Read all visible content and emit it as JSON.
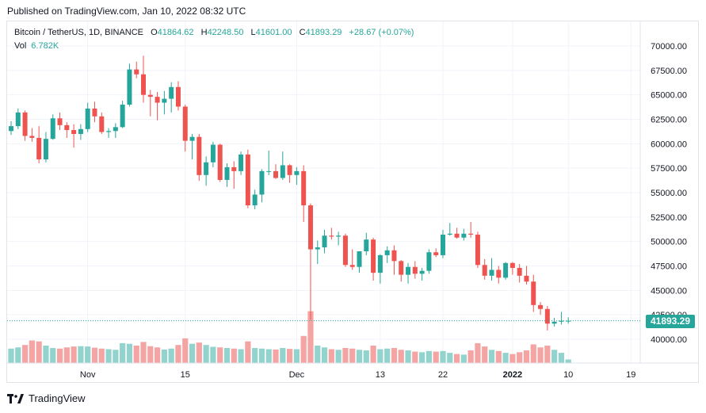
{
  "header": {
    "published": "Published on TradingView.com, Jan 10, 2022 08:32 UTC"
  },
  "legend": {
    "symbol": "Bitcoin / TetherUS, 1D, BINANCE",
    "o_label": "O",
    "o_value": "41864.62",
    "h_label": "H",
    "h_value": "42248.50",
    "l_label": "L",
    "l_value": "41601.00",
    "c_label": "C",
    "c_value": "41893.29",
    "change": "+28.67 (+0.07%)",
    "vol_label": "Vol",
    "vol_value": "6.782K"
  },
  "last_price_tag": "41893.29",
  "brand": {
    "name": "TradingView"
  },
  "colors": {
    "up": "#26a69a",
    "down": "#ef5350",
    "vol_up": "#93d3cd",
    "vol_down": "#f4a4a3",
    "grid": "#f0f3fa"
  },
  "chart_data": {
    "type": "candlestick",
    "title": "Bitcoin / TetherUS, 1D, BINANCE",
    "y_ticks": [
      "70000.00",
      "67500.00",
      "65000.00",
      "62500.00",
      "60000.00",
      "57500.00",
      "55000.00",
      "52500.00",
      "50000.00",
      "47500.00",
      "45000.00",
      "42500.00",
      "40000.00"
    ],
    "x_ticks": [
      {
        "label": "Nov",
        "index": 11
      },
      {
        "label": "15",
        "index": 25
      },
      {
        "label": "Dec",
        "index": 41
      },
      {
        "label": "13",
        "index": 53
      },
      {
        "label": "22",
        "index": 62
      },
      {
        "label": "2022",
        "index": 72
      },
      {
        "label": "10",
        "index": 80
      },
      {
        "label": "19",
        "index": 89
      }
    ],
    "ylim": [
      38000,
      71000
    ],
    "grid": true,
    "last_price": 41893.29,
    "candles": [
      {
        "o": 61300,
        "h": 62300,
        "l": 60900,
        "c": 61800,
        "v": 48
      },
      {
        "o": 61800,
        "h": 63600,
        "l": 61500,
        "c": 63200,
        "v": 52
      },
      {
        "o": 63200,
        "h": 63400,
        "l": 60300,
        "c": 60800,
        "v": 60
      },
      {
        "o": 60800,
        "h": 61600,
        "l": 60200,
        "c": 60600,
        "v": 75
      },
      {
        "o": 60600,
        "h": 61800,
        "l": 58000,
        "c": 58400,
        "v": 72
      },
      {
        "o": 58400,
        "h": 61200,
        "l": 58100,
        "c": 60500,
        "v": 58
      },
      {
        "o": 60500,
        "h": 63000,
        "l": 60400,
        "c": 62600,
        "v": 50
      },
      {
        "o": 62600,
        "h": 63200,
        "l": 61400,
        "c": 61900,
        "v": 48
      },
      {
        "o": 61900,
        "h": 62200,
        "l": 60600,
        "c": 61400,
        "v": 52
      },
      {
        "o": 61400,
        "h": 62000,
        "l": 59600,
        "c": 61000,
        "v": 55
      },
      {
        "o": 61000,
        "h": 62000,
        "l": 60400,
        "c": 61500,
        "v": 56
      },
      {
        "o": 61500,
        "h": 64200,
        "l": 61200,
        "c": 63600,
        "v": 55
      },
      {
        "o": 63600,
        "h": 64300,
        "l": 62200,
        "c": 62800,
        "v": 51
      },
      {
        "o": 62800,
        "h": 63200,
        "l": 61000,
        "c": 61200,
        "v": 48
      },
      {
        "o": 61200,
        "h": 61600,
        "l": 60600,
        "c": 61300,
        "v": 46
      },
      {
        "o": 61300,
        "h": 62100,
        "l": 60600,
        "c": 61700,
        "v": 44
      },
      {
        "o": 61700,
        "h": 64400,
        "l": 61600,
        "c": 64000,
        "v": 66
      },
      {
        "o": 64000,
        "h": 68200,
        "l": 63800,
        "c": 67600,
        "v": 64
      },
      {
        "o": 67600,
        "h": 68400,
        "l": 66700,
        "c": 67100,
        "v": 58
      },
      {
        "o": 67100,
        "h": 69000,
        "l": 64200,
        "c": 65000,
        "v": 70
      },
      {
        "o": 65000,
        "h": 65500,
        "l": 62800,
        "c": 64800,
        "v": 56
      },
      {
        "o": 64800,
        "h": 65300,
        "l": 62400,
        "c": 64200,
        "v": 52
      },
      {
        "o": 64200,
        "h": 65400,
        "l": 63000,
        "c": 64600,
        "v": 45
      },
      {
        "o": 64600,
        "h": 66300,
        "l": 63200,
        "c": 65800,
        "v": 48
      },
      {
        "o": 65800,
        "h": 66400,
        "l": 63400,
        "c": 63800,
        "v": 60
      },
      {
        "o": 63800,
        "h": 64000,
        "l": 59200,
        "c": 60300,
        "v": 82
      },
      {
        "o": 60300,
        "h": 61000,
        "l": 58400,
        "c": 60700,
        "v": 64
      },
      {
        "o": 60700,
        "h": 61000,
        "l": 56200,
        "c": 56800,
        "v": 68
      },
      {
        "o": 56800,
        "h": 58700,
        "l": 55700,
        "c": 58100,
        "v": 60
      },
      {
        "o": 58100,
        "h": 60200,
        "l": 57600,
        "c": 59900,
        "v": 54
      },
      {
        "o": 59900,
        "h": 60000,
        "l": 56100,
        "c": 56300,
        "v": 52
      },
      {
        "o": 56300,
        "h": 58000,
        "l": 55600,
        "c": 57600,
        "v": 50
      },
      {
        "o": 57600,
        "h": 58200,
        "l": 55400,
        "c": 57200,
        "v": 48
      },
      {
        "o": 57200,
        "h": 59200,
        "l": 56800,
        "c": 58900,
        "v": 46
      },
      {
        "o": 58900,
        "h": 59400,
        "l": 53400,
        "c": 53700,
        "v": 72
      },
      {
        "o": 53700,
        "h": 55300,
        "l": 53300,
        "c": 54800,
        "v": 50
      },
      {
        "o": 54800,
        "h": 57400,
        "l": 54000,
        "c": 57200,
        "v": 48
      },
      {
        "o": 57200,
        "h": 59300,
        "l": 56800,
        "c": 57200,
        "v": 46
      },
      {
        "o": 57200,
        "h": 57900,
        "l": 56400,
        "c": 56500,
        "v": 45
      },
      {
        "o": 56500,
        "h": 59200,
        "l": 56300,
        "c": 57800,
        "v": 50
      },
      {
        "o": 57800,
        "h": 57900,
        "l": 56000,
        "c": 56800,
        "v": 47
      },
      {
        "o": 56800,
        "h": 57600,
        "l": 55800,
        "c": 57200,
        "v": 46
      },
      {
        "o": 57200,
        "h": 57800,
        "l": 52000,
        "c": 53700,
        "v": 90
      },
      {
        "o": 53700,
        "h": 53900,
        "l": 42000,
        "c": 49200,
        "v": 172
      },
      {
        "o": 49200,
        "h": 50100,
        "l": 47700,
        "c": 49400,
        "v": 58
      },
      {
        "o": 49400,
        "h": 51200,
        "l": 48800,
        "c": 50600,
        "v": 52
      },
      {
        "o": 50600,
        "h": 51400,
        "l": 50200,
        "c": 50500,
        "v": 46
      },
      {
        "o": 50500,
        "h": 51000,
        "l": 49600,
        "c": 50600,
        "v": 44
      },
      {
        "o": 50600,
        "h": 50800,
        "l": 47400,
        "c": 47600,
        "v": 50
      },
      {
        "o": 47600,
        "h": 49200,
        "l": 47100,
        "c": 47400,
        "v": 48
      },
      {
        "o": 47400,
        "h": 49000,
        "l": 46800,
        "c": 49000,
        "v": 44
      },
      {
        "o": 49000,
        "h": 50900,
        "l": 48600,
        "c": 50200,
        "v": 42
      },
      {
        "o": 50200,
        "h": 50400,
        "l": 46000,
        "c": 46800,
        "v": 58
      },
      {
        "o": 46800,
        "h": 48700,
        "l": 45700,
        "c": 48600,
        "v": 46
      },
      {
        "o": 48600,
        "h": 49500,
        "l": 47800,
        "c": 49100,
        "v": 48
      },
      {
        "o": 49100,
        "h": 49600,
        "l": 46600,
        "c": 48000,
        "v": 50
      },
      {
        "o": 48000,
        "h": 48100,
        "l": 45900,
        "c": 46600,
        "v": 44
      },
      {
        "o": 46600,
        "h": 47800,
        "l": 45700,
        "c": 47400,
        "v": 42
      },
      {
        "o": 47400,
        "h": 48000,
        "l": 46200,
        "c": 46700,
        "v": 38
      },
      {
        "o": 46700,
        "h": 47300,
        "l": 46000,
        "c": 47000,
        "v": 36
      },
      {
        "o": 47000,
        "h": 49200,
        "l": 46700,
        "c": 48900,
        "v": 40
      },
      {
        "o": 48900,
        "h": 49300,
        "l": 48400,
        "c": 48600,
        "v": 38
      },
      {
        "o": 48600,
        "h": 51200,
        "l": 48300,
        "c": 50700,
        "v": 40
      },
      {
        "o": 50700,
        "h": 51900,
        "l": 50600,
        "c": 50800,
        "v": 34
      },
      {
        "o": 50800,
        "h": 51400,
        "l": 50300,
        "c": 50400,
        "v": 30
      },
      {
        "o": 50400,
        "h": 51300,
        "l": 50100,
        "c": 50800,
        "v": 28
      },
      {
        "o": 50800,
        "h": 52000,
        "l": 50400,
        "c": 50700,
        "v": 42
      },
      {
        "o": 50700,
        "h": 51000,
        "l": 47300,
        "c": 47600,
        "v": 66
      },
      {
        "o": 47600,
        "h": 48200,
        "l": 46100,
        "c": 46500,
        "v": 55
      },
      {
        "o": 46500,
        "h": 48300,
        "l": 46000,
        "c": 47100,
        "v": 44
      },
      {
        "o": 47100,
        "h": 47500,
        "l": 45700,
        "c": 46300,
        "v": 40
      },
      {
        "o": 46300,
        "h": 47900,
        "l": 46100,
        "c": 47800,
        "v": 34
      },
      {
        "o": 47800,
        "h": 47900,
        "l": 46600,
        "c": 47300,
        "v": 30
      },
      {
        "o": 47300,
        "h": 47700,
        "l": 45800,
        "c": 46500,
        "v": 36
      },
      {
        "o": 46500,
        "h": 47500,
        "l": 45600,
        "c": 45900,
        "v": 42
      },
      {
        "o": 45900,
        "h": 46600,
        "l": 42800,
        "c": 43500,
        "v": 62
      },
      {
        "o": 43500,
        "h": 43800,
        "l": 42500,
        "c": 43100,
        "v": 52
      },
      {
        "o": 43100,
        "h": 43400,
        "l": 40900,
        "c": 41600,
        "v": 58
      },
      {
        "o": 41600,
        "h": 42200,
        "l": 41300,
        "c": 41800,
        "v": 44
      },
      {
        "o": 41800,
        "h": 42800,
        "l": 41500,
        "c": 41900,
        "v": 34
      },
      {
        "o": 41864.62,
        "h": 42248.5,
        "l": 41601,
        "c": 41893.29,
        "v": 12
      }
    ]
  }
}
